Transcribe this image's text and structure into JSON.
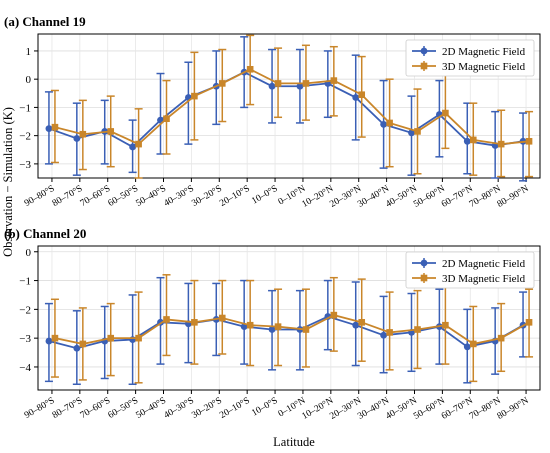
{
  "figure": {
    "ylabel": "Observation − Simulation (K)",
    "xlabel": "Latitude"
  },
  "colors": {
    "series_2d": "#3a5fb5",
    "series_3d": "#c9862a"
  },
  "chart_data": [
    {
      "type": "line",
      "panel_label": "(a) Channel 19",
      "categories": [
        "90–80°S",
        "80–70°S",
        "70–60°S",
        "60–50°S",
        "50–40°S",
        "40–30°S",
        "30–20°S",
        "20–10°S",
        "10–0°S",
        "0–10°N",
        "10–20°N",
        "20–30°N",
        "30–40°N",
        "40–50°N",
        "50–60°N",
        "60–70°N",
        "70–80°N",
        "80–90°N"
      ],
      "ylim": [
        -3.5,
        1.6
      ],
      "yticks": [
        -3,
        -2,
        -1,
        0,
        1
      ],
      "legend_position": "top-right",
      "grid": true,
      "error_bars": true,
      "series": [
        {
          "name": "2D Magnetic Field",
          "marker": "circle",
          "values": [
            -1.75,
            -2.1,
            -1.85,
            -2.4,
            -1.45,
            -0.65,
            -0.25,
            0.25,
            -0.25,
            -0.25,
            -0.15,
            -0.65,
            -1.6,
            -1.9,
            -1.25,
            -2.2,
            -2.35,
            -2.2
          ],
          "lower": [
            -3.0,
            -3.4,
            -3.0,
            -3.3,
            -2.65,
            -2.3,
            -1.6,
            -1.0,
            -1.55,
            -1.55,
            -1.35,
            -2.15,
            -3.15,
            -3.4,
            -2.75,
            -3.35,
            -3.5,
            -3.6
          ],
          "upper": [
            -0.45,
            -0.85,
            -0.75,
            -1.45,
            0.2,
            0.6,
            1.0,
            1.5,
            1.05,
            1.05,
            1.0,
            0.85,
            -0.05,
            -0.6,
            -0.05,
            -0.85,
            -1.15,
            -1.2
          ]
        },
        {
          "name": "3D Magnetic Field",
          "marker": "square",
          "values": [
            -1.7,
            -1.95,
            -1.85,
            -2.3,
            -1.4,
            -0.6,
            -0.15,
            0.35,
            -0.15,
            -0.15,
            -0.05,
            -0.55,
            -1.55,
            -1.85,
            -1.2,
            -2.15,
            -2.3,
            -2.2
          ],
          "lower": [
            -2.95,
            -3.2,
            -3.1,
            -3.5,
            -2.65,
            -2.15,
            -1.5,
            -0.9,
            -1.35,
            -1.45,
            -1.3,
            -2.05,
            -3.1,
            -3.35,
            -2.45,
            -3.4,
            -3.45,
            -3.45
          ],
          "upper": [
            -0.4,
            -0.75,
            -0.6,
            -1.05,
            -0.05,
            0.95,
            1.05,
            1.55,
            1.1,
            1.2,
            1.15,
            0.8,
            0.0,
            -0.35,
            0.15,
            -0.85,
            -1.1,
            -1.15
          ]
        }
      ]
    },
    {
      "type": "line",
      "panel_label": "(b) Channel 20",
      "categories": [
        "90–80°S",
        "80–70°S",
        "70–60°S",
        "60–50°S",
        "50–40°S",
        "40–30°S",
        "30–20°S",
        "20–10°S",
        "10–0°S",
        "0–10°N",
        "10–20°N",
        "20–30°N",
        "30–40°N",
        "40–50°N",
        "50–60°N",
        "60–70°N",
        "70–80°N",
        "80–90°N"
      ],
      "ylim": [
        -4.8,
        0.2
      ],
      "yticks": [
        -4,
        -3,
        -2,
        -1,
        0
      ],
      "legend_position": "top-right",
      "grid": true,
      "error_bars": true,
      "series": [
        {
          "name": "2D Magnetic Field",
          "marker": "circle",
          "values": [
            -3.1,
            -3.35,
            -3.1,
            -3.05,
            -2.45,
            -2.5,
            -2.35,
            -2.6,
            -2.7,
            -2.7,
            -2.25,
            -2.55,
            -2.9,
            -2.8,
            -2.6,
            -3.3,
            -3.1,
            -2.55
          ],
          "lower": [
            -4.5,
            -4.6,
            -4.4,
            -4.6,
            -3.9,
            -3.85,
            -3.6,
            -3.9,
            -4.1,
            -4.1,
            -3.4,
            -3.95,
            -4.2,
            -4.15,
            -3.9,
            -4.55,
            -4.25,
            -3.65
          ],
          "upper": [
            -1.8,
            -2.05,
            -1.9,
            -1.5,
            -0.9,
            -1.1,
            -1.1,
            -1.0,
            -1.35,
            -1.35,
            -1.0,
            -1.05,
            -1.55,
            -1.45,
            -1.3,
            -2.0,
            -1.95,
            -1.4
          ]
        },
        {
          "name": "3D Magnetic Field",
          "marker": "square",
          "values": [
            -3.0,
            -3.2,
            -3.0,
            -3.0,
            -2.35,
            -2.45,
            -2.3,
            -2.55,
            -2.6,
            -2.7,
            -2.2,
            -2.45,
            -2.8,
            -2.7,
            -2.55,
            -3.2,
            -3.0,
            -2.45
          ],
          "lower": [
            -4.35,
            -4.45,
            -4.3,
            -4.55,
            -3.6,
            -3.9,
            -3.55,
            -3.95,
            -3.95,
            -4.0,
            -3.45,
            -3.8,
            -4.1,
            -4.05,
            -3.9,
            -4.5,
            -4.15,
            -3.65
          ],
          "upper": [
            -1.65,
            -1.95,
            -1.8,
            -1.4,
            -0.8,
            -1.0,
            -1.0,
            -1.0,
            -1.3,
            -1.3,
            -0.9,
            -0.95,
            -1.4,
            -1.35,
            -1.2,
            -1.9,
            -1.8,
            -1.3
          ]
        }
      ]
    }
  ]
}
